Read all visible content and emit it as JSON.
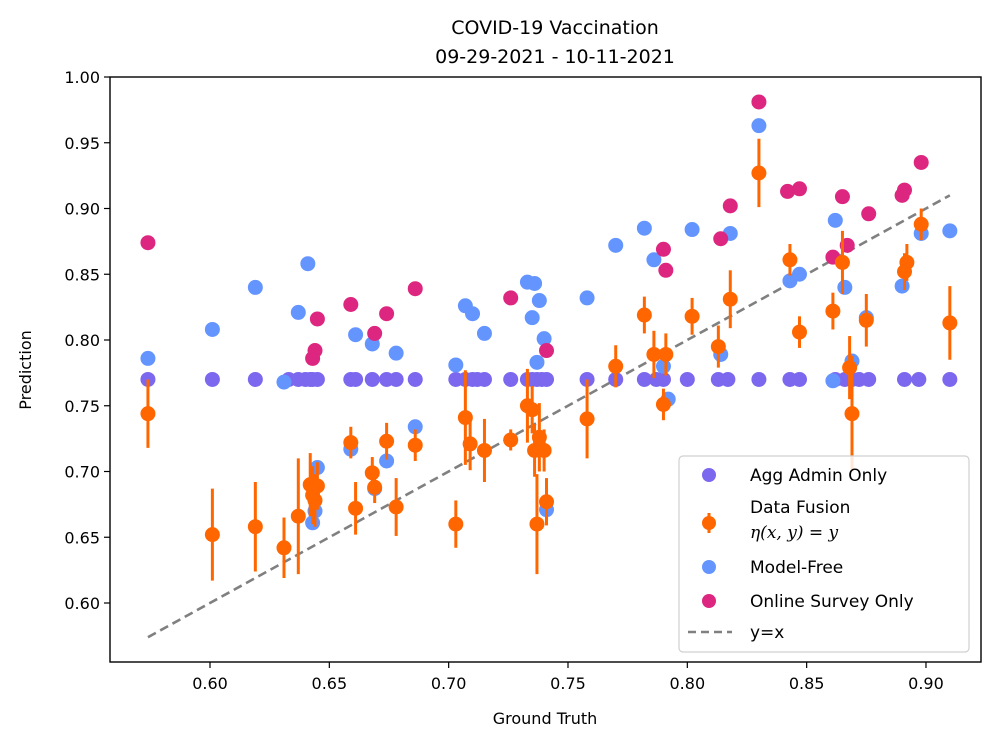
{
  "chart_data": {
    "type": "scatter",
    "title": "COVID-19 Vaccination",
    "subtitle": "09-29-2021 - 10-11-2021",
    "xlabel": "Ground Truth",
    "ylabel": "Prediction",
    "xlim": [
      0.558,
      0.925
    ],
    "ylim": [
      0.556,
      1.002
    ],
    "xticks": [
      0.6,
      0.65,
      0.7,
      0.75,
      0.8,
      0.85,
      0.9
    ],
    "xtick_labels": [
      "0.60",
      "0.65",
      "0.70",
      "0.75",
      "0.80",
      "0.85",
      "0.90"
    ],
    "yticks": [
      0.6,
      0.65,
      0.7,
      0.75,
      0.8,
      0.85,
      0.9,
      0.95,
      1.0
    ],
    "ytick_labels": [
      "0.60",
      "0.65",
      "0.70",
      "0.75",
      "0.80",
      "0.85",
      "0.90",
      "0.95",
      "1.00"
    ],
    "grid": false,
    "legend_position": "bottom-right",
    "legend": [
      {
        "label": "Agg Admin Only",
        "marker": "dot",
        "color": "#7b68ee"
      },
      {
        "label": "Data Fusion",
        "label2": "η(x, y) = y",
        "marker": "errorbar-dot",
        "color": "#ff6600"
      },
      {
        "label": "Model-Free",
        "marker": "dot",
        "color": "#6495ff"
      },
      {
        "label": "Online Survey Only",
        "marker": "dot",
        "color": "#dc267f"
      },
      {
        "label": "y=x",
        "marker": "dashed-line",
        "color": "#808080"
      }
    ],
    "reference_line": {
      "name": "y=x",
      "x": [
        0.574,
        0.91
      ],
      "y": [
        0.574,
        0.91
      ],
      "color": "#808080"
    },
    "series": [
      {
        "name": "Agg Admin Only",
        "color": "#7b68ee",
        "x": [
          0.574,
          0.601,
          0.619,
          0.633,
          0.637,
          0.64,
          0.642,
          0.643,
          0.645,
          0.659,
          0.661,
          0.668,
          0.674,
          0.678,
          0.686,
          0.703,
          0.707,
          0.71,
          0.712,
          0.715,
          0.726,
          0.733,
          0.735,
          0.737,
          0.739,
          0.741,
          0.758,
          0.77,
          0.782,
          0.787,
          0.79,
          0.8,
          0.813,
          0.817,
          0.83,
          0.843,
          0.847,
          0.862,
          0.866,
          0.869,
          0.872,
          0.876,
          0.891,
          0.897,
          0.91
        ],
        "y": [
          0.77,
          0.77,
          0.77,
          0.77,
          0.77,
          0.77,
          0.77,
          0.77,
          0.77,
          0.77,
          0.77,
          0.77,
          0.77,
          0.77,
          0.77,
          0.77,
          0.77,
          0.77,
          0.77,
          0.77,
          0.77,
          0.77,
          0.77,
          0.77,
          0.77,
          0.77,
          0.77,
          0.77,
          0.77,
          0.77,
          0.77,
          0.77,
          0.77,
          0.77,
          0.77,
          0.77,
          0.77,
          0.77,
          0.77,
          0.77,
          0.77,
          0.77,
          0.77,
          0.77,
          0.77
        ]
      },
      {
        "name": "Data Fusion",
        "color": "#ff6600",
        "x": [
          0.574,
          0.601,
          0.619,
          0.631,
          0.637,
          0.642,
          0.643,
          0.644,
          0.645,
          0.659,
          0.661,
          0.668,
          0.669,
          0.674,
          0.678,
          0.686,
          0.703,
          0.707,
          0.709,
          0.715,
          0.726,
          0.733,
          0.735,
          0.736,
          0.737,
          0.738,
          0.74,
          0.741,
          0.758,
          0.77,
          0.782,
          0.786,
          0.79,
          0.791,
          0.802,
          0.813,
          0.818,
          0.83,
          0.843,
          0.847,
          0.861,
          0.865,
          0.868,
          0.869,
          0.875,
          0.891,
          0.892,
          0.898,
          0.91
        ],
        "y": [
          0.744,
          0.652,
          0.658,
          0.642,
          0.666,
          0.69,
          0.682,
          0.678,
          0.689,
          0.722,
          0.672,
          0.699,
          0.688,
          0.723,
          0.673,
          0.72,
          0.66,
          0.741,
          0.721,
          0.716,
          0.724,
          0.75,
          0.747,
          0.716,
          0.66,
          0.726,
          0.716,
          0.677,
          0.74,
          0.78,
          0.819,
          0.789,
          0.751,
          0.789,
          0.818,
          0.795,
          0.831,
          0.927,
          0.861,
          0.806,
          0.822,
          0.859,
          0.779,
          0.744,
          0.815,
          0.852,
          0.859,
          0.888,
          0.813
        ],
        "err": [
          0.026,
          0.035,
          0.034,
          0.023,
          0.044,
          0.024,
          0.022,
          0.02,
          0.018,
          0.012,
          0.02,
          0.012,
          0.012,
          0.014,
          0.022,
          0.012,
          0.018,
          0.036,
          0.02,
          0.024,
          0.008,
          0.028,
          0.018,
          0.02,
          0.038,
          0.026,
          0.016,
          0.018,
          0.03,
          0.016,
          0.014,
          0.018,
          0.012,
          0.016,
          0.014,
          0.016,
          0.022,
          0.026,
          0.012,
          0.012,
          0.014,
          0.024,
          0.024,
          0.044,
          0.02,
          0.014,
          0.014,
          0.012,
          0.028
        ]
      },
      {
        "name": "Model-Free",
        "color": "#6495ff",
        "x": [
          0.574,
          0.601,
          0.619,
          0.631,
          0.637,
          0.641,
          0.643,
          0.644,
          0.645,
          0.659,
          0.661,
          0.668,
          0.669,
          0.674,
          0.678,
          0.686,
          0.703,
          0.707,
          0.71,
          0.715,
          0.733,
          0.735,
          0.736,
          0.737,
          0.738,
          0.74,
          0.741,
          0.758,
          0.77,
          0.782,
          0.786,
          0.79,
          0.792,
          0.802,
          0.814,
          0.818,
          0.83,
          0.843,
          0.847,
          0.861,
          0.862,
          0.866,
          0.869,
          0.875,
          0.89,
          0.898,
          0.91
        ],
        "y": [
          0.786,
          0.808,
          0.84,
          0.768,
          0.821,
          0.858,
          0.661,
          0.67,
          0.703,
          0.717,
          0.804,
          0.797,
          0.687,
          0.708,
          0.79,
          0.734,
          0.781,
          0.826,
          0.82,
          0.805,
          0.844,
          0.817,
          0.843,
          0.783,
          0.83,
          0.801,
          0.671,
          0.832,
          0.872,
          0.885,
          0.861,
          0.78,
          0.755,
          0.884,
          0.789,
          0.881,
          0.963,
          0.845,
          0.85,
          0.769,
          0.891,
          0.84,
          0.784,
          0.817,
          0.841,
          0.881,
          0.883
        ]
      },
      {
        "name": "Online Survey Only",
        "color": "#dc267f",
        "x": [
          0.574,
          0.643,
          0.644,
          0.645,
          0.659,
          0.669,
          0.674,
          0.686,
          0.726,
          0.741,
          0.79,
          0.791,
          0.814,
          0.818,
          0.83,
          0.842,
          0.847,
          0.861,
          0.865,
          0.867,
          0.876,
          0.89,
          0.891,
          0.898
        ],
        "y": [
          0.874,
          0.786,
          0.792,
          0.816,
          0.827,
          0.805,
          0.82,
          0.839,
          0.832,
          0.792,
          0.869,
          0.853,
          0.877,
          0.902,
          0.981,
          0.913,
          0.915,
          0.863,
          0.909,
          0.872,
          0.896,
          0.91,
          0.914,
          0.935
        ]
      }
    ]
  }
}
